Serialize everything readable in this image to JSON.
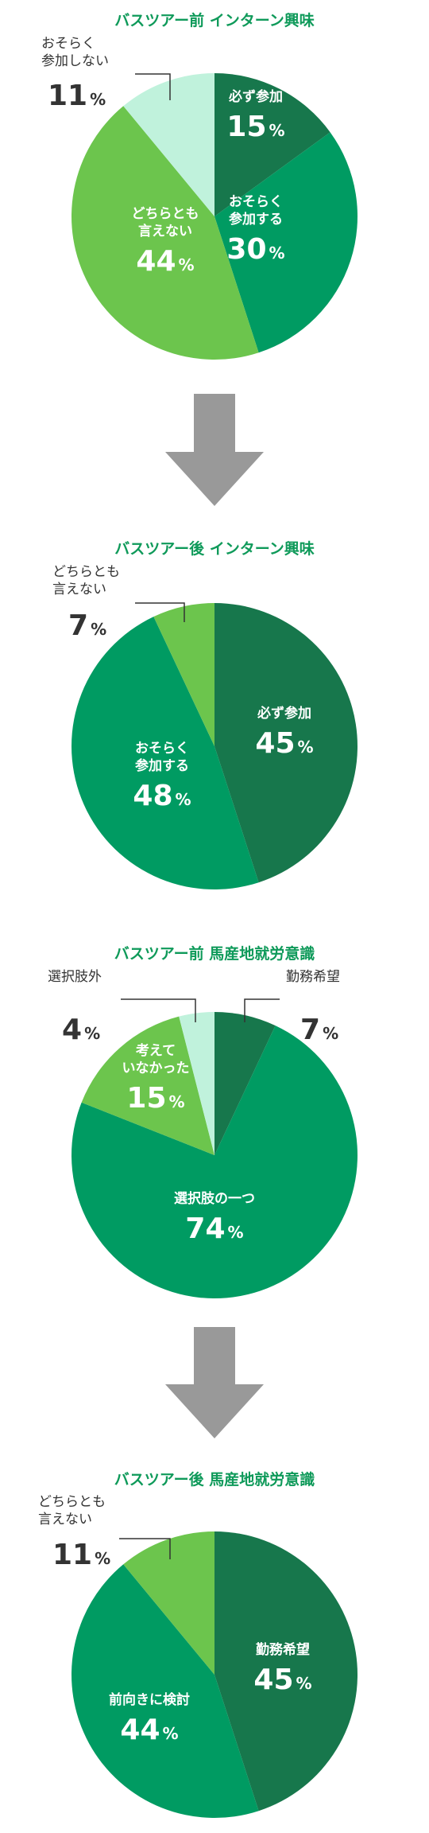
{
  "colors": {
    "title": "#0f9a5a",
    "dark_green": "#17774c",
    "green": "#009b62",
    "light_green": "#6cc54d",
    "pale_green": "#c0f2dc",
    "inside_text": "#ffffff",
    "outside_text": "#333333",
    "leader": "#333333",
    "arrow": "#999999"
  },
  "arrow_icon": "down-arrow-icon",
  "chart_data": [
    {
      "type": "pie",
      "title": "バスツアー前 インターン興味",
      "slices": [
        {
          "lines": [
            "必ず参加"
          ],
          "pct": "15",
          "value": 15,
          "color": "#17774c",
          "outside": false
        },
        {
          "lines": [
            "おそらく",
            "参加する"
          ],
          "pct": "30",
          "value": 30,
          "color": "#009b62",
          "outside": false
        },
        {
          "lines": [
            "どちらとも",
            "言えない"
          ],
          "pct": "44",
          "value": 44,
          "color": "#6cc54d",
          "outside": false
        },
        {
          "lines": [
            "おそらく",
            "参加しない"
          ],
          "pct": "11",
          "value": 11,
          "color": "#c0f2dc",
          "outside": true
        }
      ]
    },
    {
      "type": "pie",
      "title": "バスツアー後 インターン興味",
      "slices": [
        {
          "lines": [
            "必ず参加"
          ],
          "pct": "45",
          "value": 45,
          "color": "#17774c",
          "outside": false
        },
        {
          "lines": [
            "おそらく",
            "参加する"
          ],
          "pct": "48",
          "value": 48,
          "color": "#009b62",
          "outside": false
        },
        {
          "lines": [
            "どちらとも",
            "言えない"
          ],
          "pct": "7",
          "value": 7,
          "color": "#6cc54d",
          "outside": true
        }
      ]
    },
    {
      "type": "pie",
      "title": "バスツアー前 馬産地就労意識",
      "slices": [
        {
          "lines": [
            "勤務希望"
          ],
          "pct": "7",
          "value": 7,
          "color": "#17774c",
          "outside": true
        },
        {
          "lines": [
            "選択肢の一つ"
          ],
          "pct": "74",
          "value": 74,
          "color": "#009b62",
          "outside": false
        },
        {
          "lines": [
            "考えて",
            "いなかった"
          ],
          "pct": "15",
          "value": 15,
          "color": "#6cc54d",
          "outside": false
        },
        {
          "lines": [
            "選択肢外"
          ],
          "pct": "4",
          "value": 4,
          "color": "#c0f2dc",
          "outside": true
        }
      ]
    },
    {
      "type": "pie",
      "title": "バスツアー後 馬産地就労意識",
      "slices": [
        {
          "lines": [
            "勤務希望"
          ],
          "pct": "45",
          "value": 45,
          "color": "#17774c",
          "outside": false
        },
        {
          "lines": [
            "前向きに検討"
          ],
          "pct": "44",
          "value": 44,
          "color": "#009b62",
          "outside": false
        },
        {
          "lines": [
            "どちらとも",
            "言えない"
          ],
          "pct": "11",
          "value": 11,
          "color": "#6cc54d",
          "outside": true
        }
      ]
    }
  ],
  "percent_sign": "%"
}
